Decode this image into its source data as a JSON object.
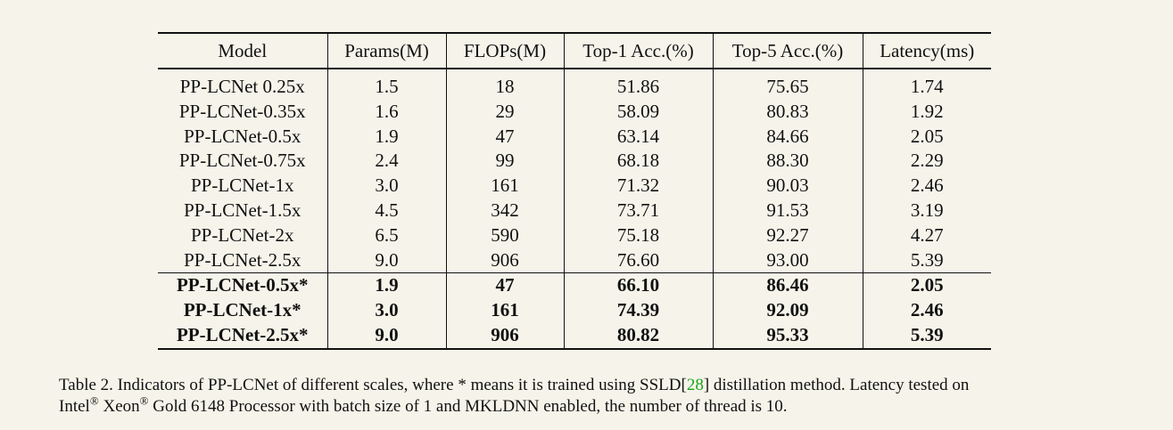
{
  "table": {
    "headers": [
      "Model",
      "Params(M)",
      "FLOPs(M)",
      "Top-1 Acc.(%)",
      "Top-5 Acc.(%)",
      "Latency(ms)"
    ],
    "rows": [
      [
        "PP-LCNet 0.25x",
        "1.5",
        "18",
        "51.86",
        "75.65",
        "1.74"
      ],
      [
        "PP-LCNet-0.35x",
        "1.6",
        "29",
        "58.09",
        "80.83",
        "1.92"
      ],
      [
        "PP-LCNet-0.5x",
        "1.9",
        "47",
        "63.14",
        "84.66",
        "2.05"
      ],
      [
        "PP-LCNet-0.75x",
        "2.4",
        "99",
        "68.18",
        "88.30",
        "2.29"
      ],
      [
        "PP-LCNet-1x",
        "3.0",
        "161",
        "71.32",
        "90.03",
        "2.46"
      ],
      [
        "PP-LCNet-1.5x",
        "4.5",
        "342",
        "73.71",
        "91.53",
        "3.19"
      ],
      [
        "PP-LCNet-2x",
        "6.5",
        "590",
        "75.18",
        "92.27",
        "4.27"
      ],
      [
        "PP-LCNet-2.5x",
        "9.0",
        "906",
        "76.60",
        "93.00",
        "5.39"
      ]
    ],
    "bold_rows": [
      [
        "PP-LCNet-0.5x*",
        "1.9",
        "47",
        "66.10",
        "86.46",
        "2.05"
      ],
      [
        "PP-LCNet-1x*",
        "3.0",
        "161",
        "74.39",
        "92.09",
        "2.46"
      ],
      [
        "PP-LCNet-2.5x*",
        "9.0",
        "906",
        "80.82",
        "95.33",
        "5.39"
      ]
    ]
  },
  "caption": {
    "part1": "Table 2. Indicators of PP-LCNet of different scales, where * means it is trained using SSLD[",
    "citation": "28",
    "part2": "] distillation method. Latency tested on",
    "line2_a": "Intel",
    "reg1": "®",
    "line2_b": " Xeon",
    "reg2": "®",
    "line2_c": " Gold 6148 Processor with batch size of 1 and MKLDNN enabled, the number of thread is 10."
  }
}
